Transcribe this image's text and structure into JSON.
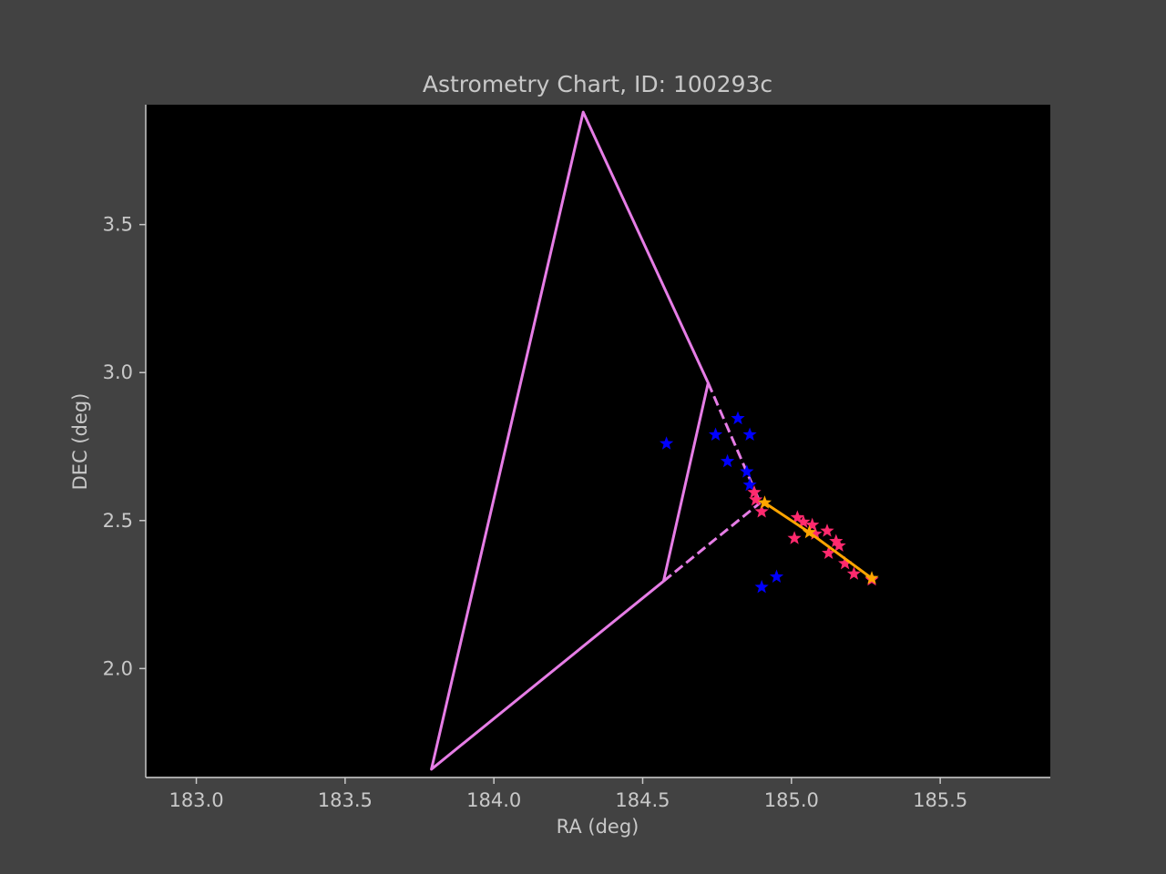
{
  "chart_data": {
    "type": "scatter",
    "title": "Astrometry Chart, ID: 100293c",
    "xlabel": "RA (deg)",
    "ylabel": "DEC (deg)",
    "xlim": [
      182.83,
      185.87
    ],
    "ylim": [
      1.635,
      3.905
    ],
    "xticks": [
      183.0,
      183.5,
      184.0,
      184.5,
      185.0,
      185.5
    ],
    "xtick_labels": [
      "183.0",
      "183.5",
      "184.0",
      "184.5",
      "185.0",
      "185.5"
    ],
    "yticks": [
      2.0,
      2.5,
      3.0,
      3.5
    ],
    "ytick_labels": [
      "2.0",
      "2.5",
      "3.0",
      "3.5"
    ],
    "grid": false,
    "colors": {
      "figure_bg": "#424242",
      "axes_bg": "#000000",
      "axis": "#c8c8c8",
      "fov": "#e67de6",
      "track": "#ffa500",
      "catalog_stars": "#0000ff",
      "detections": "#ff2a6e"
    },
    "series": [
      {
        "name": "field-outline",
        "kind": "solid-polyline",
        "color": "#e67de6",
        "points": [
          [
            184.57,
            2.295
          ],
          [
            183.79,
            1.66
          ],
          [
            184.3,
            3.88
          ],
          [
            184.72,
            2.965
          ],
          [
            184.57,
            2.295
          ]
        ]
      },
      {
        "name": "field-extension-upper",
        "kind": "dashed-polyline",
        "color": "#e67de6",
        "points": [
          [
            184.72,
            2.965
          ],
          [
            184.895,
            2.56
          ]
        ]
      },
      {
        "name": "field-extension-lower",
        "kind": "dashed-polyline",
        "color": "#e67de6",
        "points": [
          [
            184.57,
            2.295
          ],
          [
            184.895,
            2.56
          ]
        ]
      },
      {
        "name": "catalog-stars",
        "kind": "star-markers",
        "color": "#0000ff",
        "points": [
          [
            184.58,
            2.76
          ],
          [
            184.745,
            2.79
          ],
          [
            184.785,
            2.7
          ],
          [
            184.82,
            2.845
          ],
          [
            184.86,
            2.79
          ],
          [
            184.85,
            2.665
          ],
          [
            184.86,
            2.62
          ],
          [
            184.9,
            2.275
          ],
          [
            184.95,
            2.31
          ]
        ]
      },
      {
        "name": "detections",
        "kind": "star-markers",
        "color": "#ff2a6e",
        "points": [
          [
            184.875,
            2.595
          ],
          [
            184.88,
            2.57
          ],
          [
            184.9,
            2.53
          ],
          [
            185.01,
            2.44
          ],
          [
            185.02,
            2.51
          ],
          [
            185.04,
            2.495
          ],
          [
            185.07,
            2.485
          ],
          [
            185.08,
            2.455
          ],
          [
            185.12,
            2.465
          ],
          [
            185.15,
            2.43
          ],
          [
            185.16,
            2.415
          ],
          [
            185.125,
            2.39
          ],
          [
            185.18,
            2.355
          ],
          [
            185.21,
            2.32
          ],
          [
            185.27,
            2.3
          ]
        ]
      },
      {
        "name": "motion-track",
        "kind": "line-with-markers",
        "color": "#ffa500",
        "points": [
          [
            184.91,
            2.56
          ],
          [
            185.06,
            2.46
          ],
          [
            185.27,
            2.305
          ]
        ]
      }
    ]
  }
}
